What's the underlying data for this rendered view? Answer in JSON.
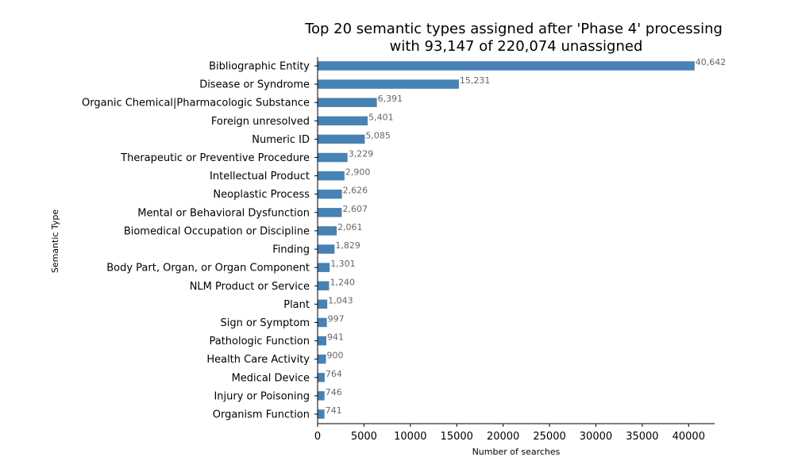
{
  "chart_data": {
    "type": "bar",
    "orientation": "horizontal",
    "title_lines": [
      "Top 20 semantic types assigned after 'Phase 4' processing",
      "with 93,147 of 220,074 unassigned"
    ],
    "xlabel": "Number of searches",
    "ylabel": "Semantic Type",
    "xlim": [
      0,
      42800
    ],
    "xticks": [
      0,
      5000,
      10000,
      15000,
      20000,
      25000,
      30000,
      35000,
      40000
    ],
    "grid": false,
    "bar_color": "#4682b4",
    "categories": [
      "Bibliographic Entity",
      "Disease or Syndrome",
      "Organic Chemical|Pharmacologic Substance",
      "Foreign unresolved",
      "Numeric ID",
      "Therapeutic or Preventive Procedure",
      "Intellectual Product",
      "Neoplastic Process",
      "Mental or Behavioral Dysfunction",
      "Biomedical Occupation or Discipline",
      "Finding",
      "Body Part, Organ, or Organ Component",
      "NLM Product or Service",
      "Plant",
      "Sign or Symptom",
      "Pathologic Function",
      "Health Care Activity",
      "Medical Device",
      "Injury or Poisoning",
      "Organism Function"
    ],
    "values": [
      40642,
      15231,
      6391,
      5401,
      5085,
      3229,
      2900,
      2626,
      2607,
      2061,
      1829,
      1301,
      1240,
      1043,
      997,
      941,
      900,
      764,
      746,
      741
    ],
    "value_labels": [
      "40,642",
      "15,231",
      "6,391",
      "5,401",
      "5,085",
      "3,229",
      "2,900",
      "2,626",
      "2,607",
      "2,061",
      "1,829",
      "1,301",
      "1,240",
      "1,043",
      "997",
      "941",
      "900",
      "764",
      "746",
      "741"
    ]
  }
}
